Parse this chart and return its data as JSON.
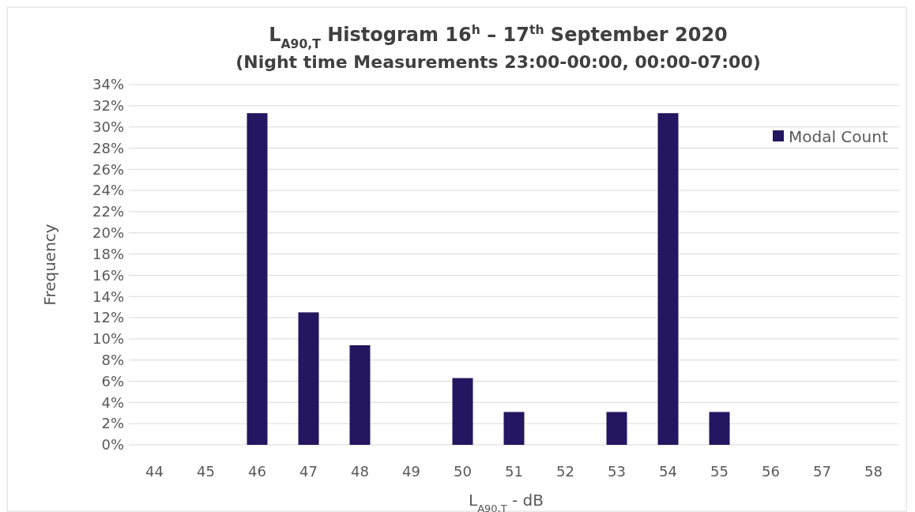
{
  "chart_data": {
    "type": "bar",
    "title": "L$_{A90,T}$ Histogram 16$^{h}$ – 17$^{th}$ September 2020",
    "subtitle": "(Night time Measurements 23:00-00:00, 00:00-07:00)",
    "xlabel": "L$_{A90,T}$ - dB",
    "ylabel": "Frequency",
    "categories": [
      "44",
      "45",
      "46",
      "47",
      "48",
      "49",
      "50",
      "51",
      "52",
      "53",
      "54",
      "55",
      "56",
      "57",
      "58"
    ],
    "series": [
      {
        "name": "Modal Count",
        "color": "#241660",
        "values": [
          0,
          0,
          31.3,
          12.5,
          9.4,
          0,
          6.3,
          3.1,
          0,
          3.1,
          31.3,
          3.1,
          0,
          0,
          0
        ]
      }
    ],
    "ylim": [
      0,
      34
    ],
    "yticks": [
      {
        "value": 0,
        "label": "0%"
      },
      {
        "value": 2,
        "label": "2%"
      },
      {
        "value": 4,
        "label": "4%"
      },
      {
        "value": 6,
        "label": "6%"
      },
      {
        "value": 8,
        "label": "8%"
      },
      {
        "value": 10,
        "label": "10%"
      },
      {
        "value": 12,
        "label": "12%"
      },
      {
        "value": 14,
        "label": "14%"
      },
      {
        "value": 16,
        "label": "16%"
      },
      {
        "value": 18,
        "label": "18%"
      },
      {
        "value": 20,
        "label": "20%"
      },
      {
        "value": 22,
        "label": "22%"
      },
      {
        "value": 24,
        "label": "24%"
      },
      {
        "value": 26,
        "label": "26%"
      },
      {
        "value": 28,
        "label": "28%"
      },
      {
        "value": 30,
        "label": "30%"
      },
      {
        "value": 32,
        "label": "32%"
      },
      {
        "value": 34,
        "label": "34%"
      }
    ],
    "grid": "y",
    "legend": "top right"
  }
}
